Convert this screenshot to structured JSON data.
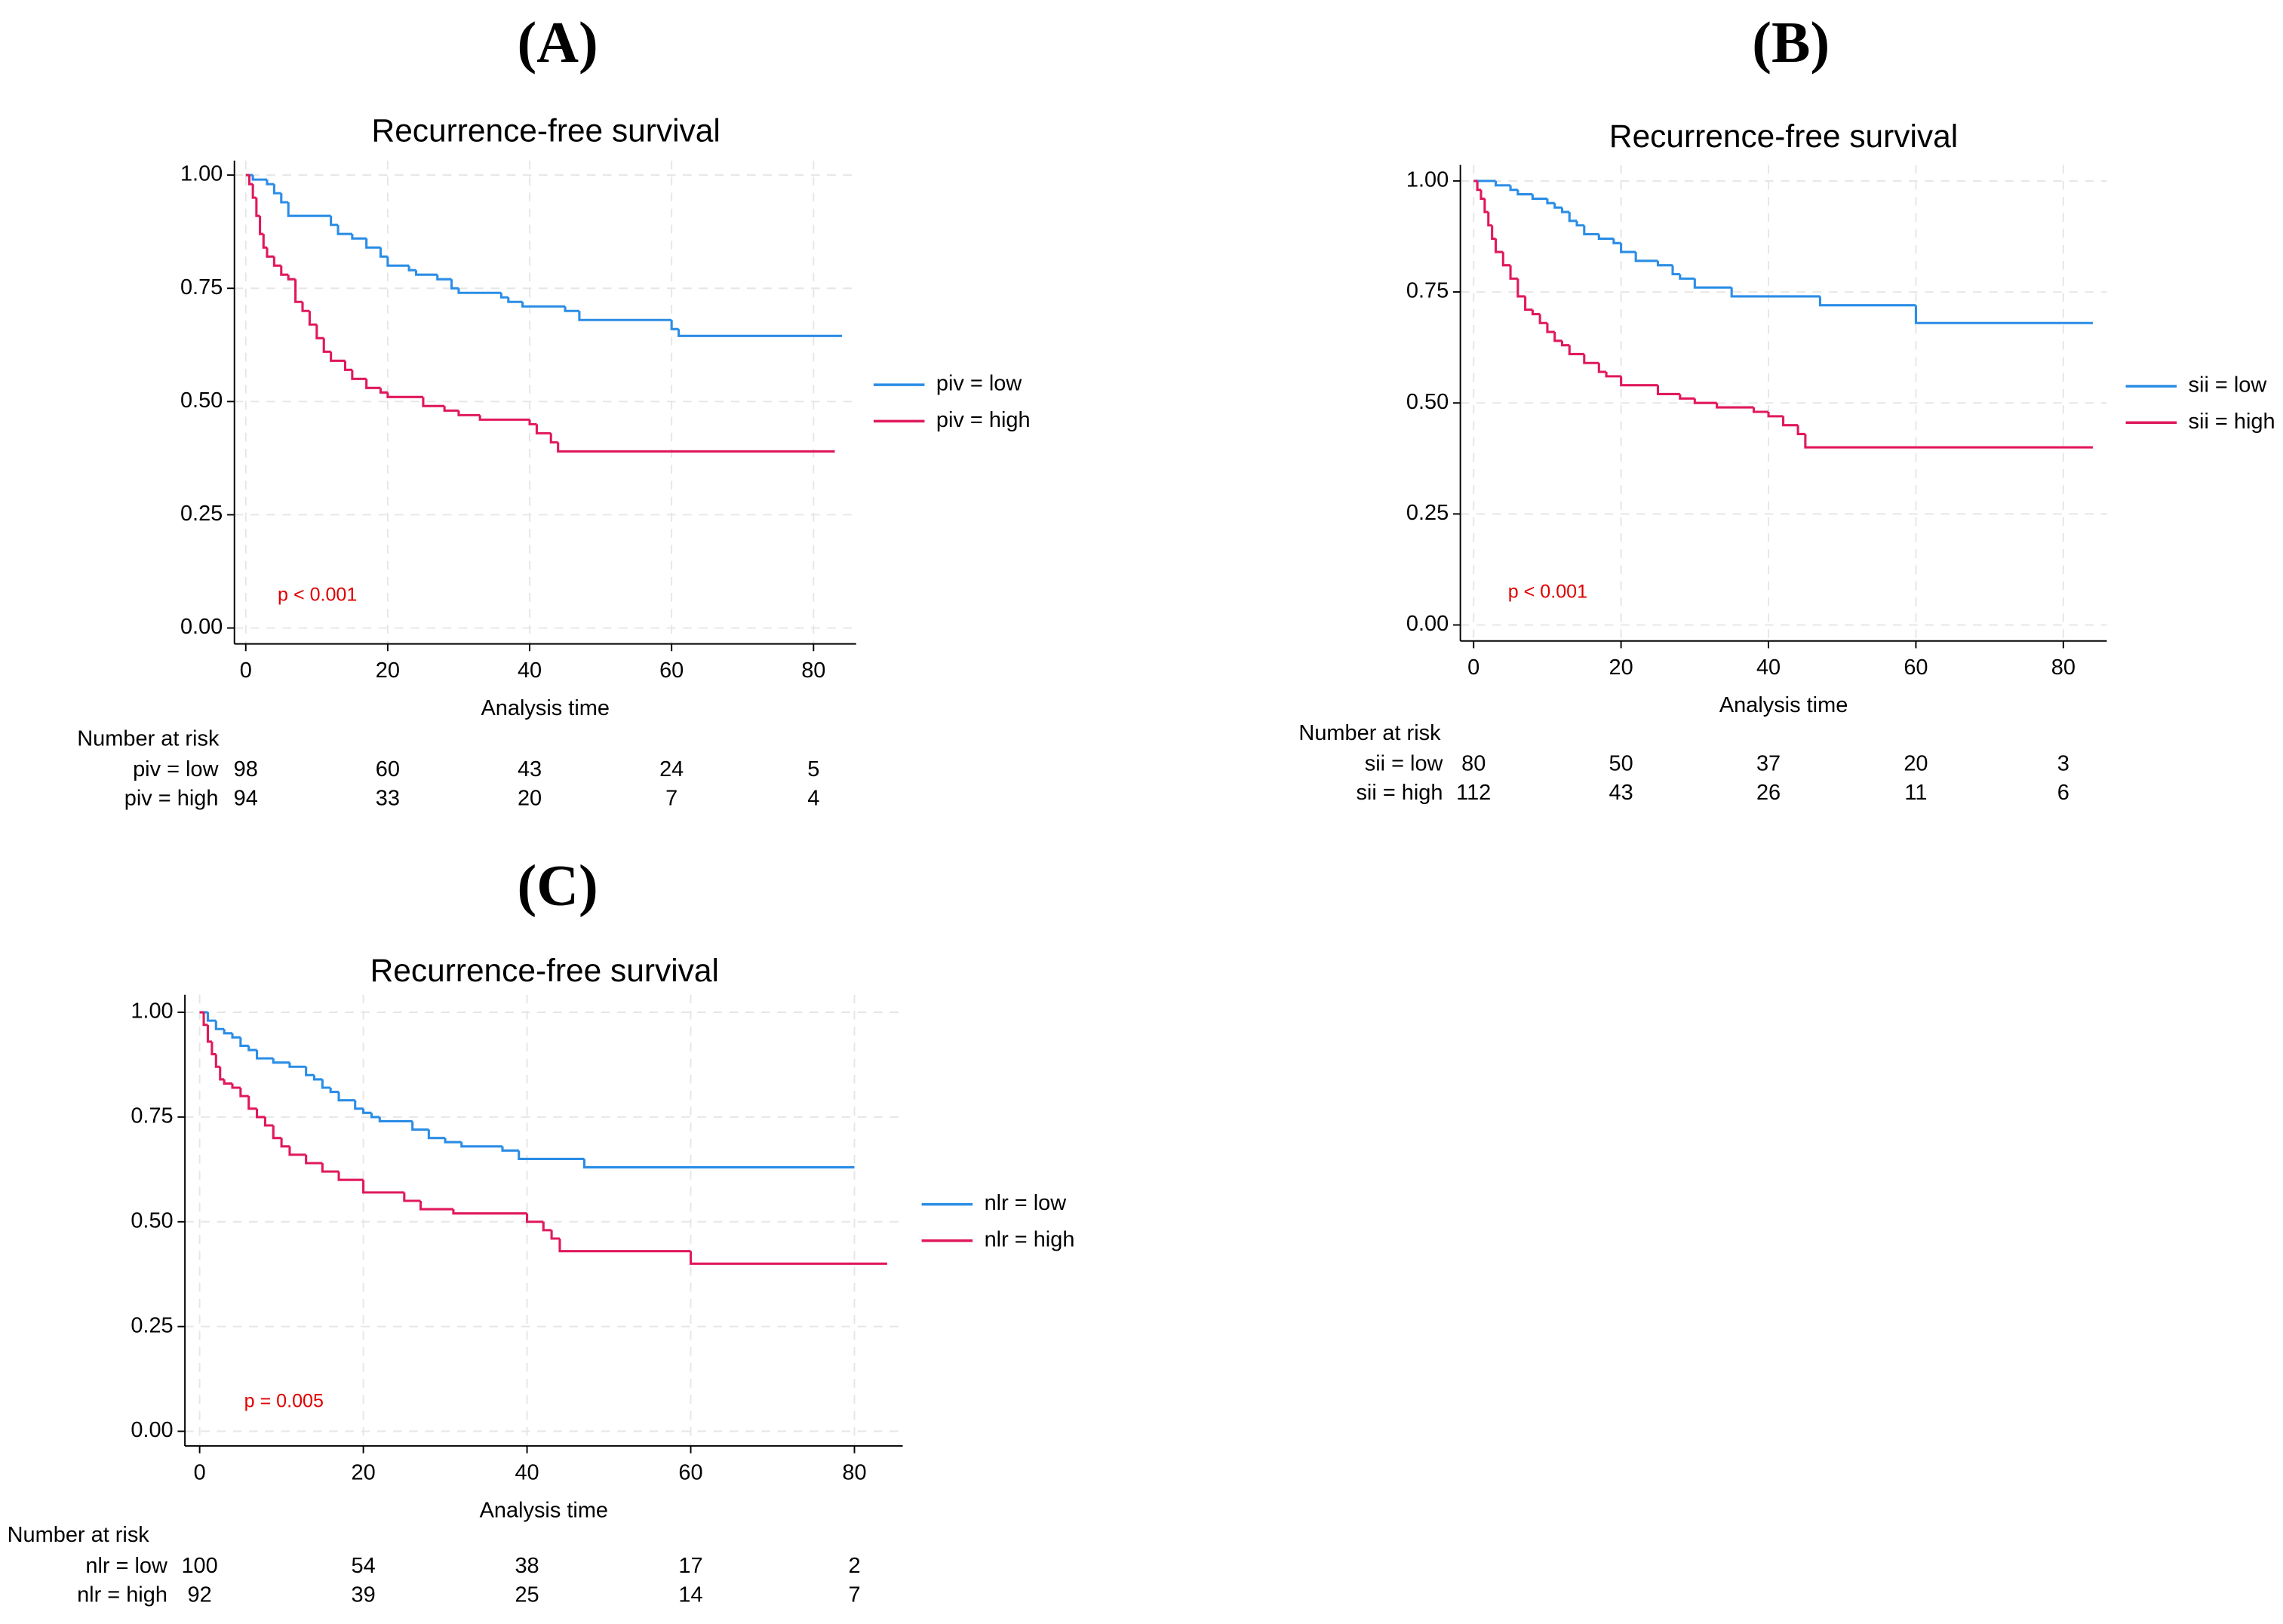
{
  "chart_data": [
    {
      "type": "line",
      "panel_label": "(A)",
      "title": "Recurrence-free survival",
      "x_label": "Analysis time",
      "xlim": [
        -1.6,
        86
      ],
      "xticks": [
        0,
        20,
        40,
        60,
        80
      ],
      "ylim": [
        -0.035,
        1.032
      ],
      "yticks": [
        {
          "value": 1,
          "label": "1.00"
        },
        0.75,
        {
          "value": 0.5,
          "label": "0.50"
        },
        0.25,
        {
          "value": 0,
          "label": "0.00"
        }
      ],
      "grid": true,
      "legend": "right",
      "annotation": "p < 0.001",
      "series": [
        {
          "name": "piv = low",
          "color": "#2b8de6",
          "x": [
            0,
            1,
            3,
            4,
            5,
            6,
            12,
            13,
            15,
            17,
            19,
            20,
            23,
            24,
            27,
            29,
            30,
            36,
            37,
            39,
            45,
            47,
            60,
            61,
            84
          ],
          "values": [
            1,
            0.99,
            0.98,
            0.96,
            0.94,
            0.91,
            0.89,
            0.87,
            0.86,
            0.84,
            0.82,
            0.8,
            0.79,
            0.78,
            0.77,
            0.75,
            0.74,
            0.73,
            0.72,
            0.71,
            0.7,
            0.68,
            0.66,
            0.645,
            0.645
          ]
        },
        {
          "name": "piv = high",
          "color": "#e0195a",
          "x": [
            0,
            0.5,
            1,
            1.5,
            2,
            2.5,
            3,
            4,
            5,
            6,
            7,
            8,
            9,
            10,
            11,
            12,
            14,
            15,
            17,
            19,
            20,
            25,
            28,
            30,
            33,
            40,
            41,
            43,
            44,
            83
          ],
          "values": [
            1,
            0.98,
            0.95,
            0.91,
            0.87,
            0.84,
            0.82,
            0.8,
            0.78,
            0.77,
            0.72,
            0.7,
            0.67,
            0.64,
            0.61,
            0.59,
            0.57,
            0.55,
            0.53,
            0.52,
            0.51,
            0.49,
            0.48,
            0.47,
            0.46,
            0.45,
            0.43,
            0.41,
            0.39,
            0.39
          ]
        }
      ],
      "risk_table": {
        "title": "Number at risk",
        "values": [
          [
            98,
            60,
            43,
            24,
            5
          ],
          [
            94,
            33,
            20,
            7,
            4
          ]
        ]
      }
    },
    {
      "type": "line",
      "panel_label": "(B)",
      "title": "Recurrence-free survival",
      "x_label": "Analysis time",
      "xlim": [
        -1.8,
        85.9
      ],
      "xticks": [
        0,
        20,
        40,
        60,
        80
      ],
      "ylim": [
        -0.036,
        1.036
      ],
      "yticks": [
        {
          "value": 1,
          "label": "1.00"
        },
        0.75,
        {
          "value": 0.5,
          "label": "0.50"
        },
        0.25,
        {
          "value": 0,
          "label": "0.00"
        }
      ],
      "grid": true,
      "legend": "right",
      "annotation": "p < 0.001",
      "series": [
        {
          "name": "sii = low",
          "color": "#2b8de6",
          "x": [
            0,
            3,
            5,
            6,
            8,
            10,
            11,
            12,
            13,
            14,
            15,
            17,
            19,
            20,
            22,
            25,
            27,
            28,
            30,
            35,
            47,
            60,
            84
          ],
          "values": [
            1,
            0.99,
            0.98,
            0.97,
            0.96,
            0.95,
            0.94,
            0.93,
            0.91,
            0.9,
            0.88,
            0.87,
            0.86,
            0.84,
            0.82,
            0.81,
            0.79,
            0.78,
            0.76,
            0.74,
            0.72,
            0.68,
            0.68
          ]
        },
        {
          "name": "sii = high",
          "color": "#e0195a",
          "x": [
            0,
            0.5,
            1,
            1.5,
            2,
            2.5,
            3,
            4,
            5,
            6,
            7,
            8,
            9,
            10,
            11,
            12,
            13,
            15,
            17,
            18,
            20,
            25,
            28,
            30,
            33,
            38,
            40,
            42,
            44,
            45,
            84
          ],
          "values": [
            1,
            0.98,
            0.96,
            0.93,
            0.9,
            0.87,
            0.84,
            0.81,
            0.78,
            0.74,
            0.71,
            0.7,
            0.68,
            0.66,
            0.64,
            0.63,
            0.61,
            0.59,
            0.57,
            0.56,
            0.54,
            0.52,
            0.51,
            0.5,
            0.49,
            0.48,
            0.47,
            0.45,
            0.43,
            0.4,
            0.4
          ]
        }
      ],
      "risk_table": {
        "title": "Number at risk",
        "values": [
          [
            80,
            50,
            37,
            20,
            3
          ],
          [
            112,
            43,
            26,
            11,
            6
          ]
        ]
      }
    },
    {
      "type": "line",
      "panel_label": "(C)",
      "title": "Recurrence-free survival",
      "x_label": "Analysis time",
      "xlim": [
        -1.8,
        85.9
      ],
      "xticks": [
        0,
        20,
        40,
        60,
        80
      ],
      "ylim": [
        -0.035,
        1.042
      ],
      "yticks": [
        {
          "value": 1,
          "label": "1.00"
        },
        0.75,
        {
          "value": 0.5,
          "label": "0.50"
        },
        0.25,
        {
          "value": 0,
          "label": "0.00"
        }
      ],
      "grid": true,
      "legend": "right",
      "annotation": "p = 0.005",
      "series": [
        {
          "name": "nlr = low",
          "color": "#2b8de6",
          "x": [
            0,
            1,
            2,
            3,
            4,
            5,
            6,
            7,
            9,
            11,
            13,
            14,
            15,
            16,
            17,
            19,
            20,
            21,
            22,
            26,
            28,
            30,
            32,
            37,
            39,
            47,
            80
          ],
          "values": [
            1,
            0.98,
            0.96,
            0.95,
            0.94,
            0.92,
            0.91,
            0.89,
            0.88,
            0.87,
            0.85,
            0.84,
            0.82,
            0.81,
            0.79,
            0.77,
            0.76,
            0.75,
            0.74,
            0.72,
            0.7,
            0.69,
            0.68,
            0.67,
            0.65,
            0.63,
            0.63
          ]
        },
        {
          "name": "nlr = high",
          "color": "#e0195a",
          "x": [
            0,
            0.5,
            1,
            1.5,
            2,
            2.5,
            3,
            4,
            5,
            6,
            7,
            8,
            9,
            10,
            11,
            13,
            15,
            17,
            20,
            25,
            27,
            31,
            40,
            42,
            43,
            44,
            60,
            84
          ],
          "values": [
            1,
            0.97,
            0.93,
            0.9,
            0.87,
            0.84,
            0.83,
            0.82,
            0.8,
            0.77,
            0.75,
            0.73,
            0.7,
            0.68,
            0.66,
            0.64,
            0.62,
            0.6,
            0.57,
            0.55,
            0.53,
            0.52,
            0.5,
            0.48,
            0.46,
            0.43,
            0.4,
            0.4
          ]
        }
      ],
      "risk_table": {
        "title": "Number at risk",
        "values": [
          [
            100,
            54,
            38,
            17,
            2
          ],
          [
            92,
            39,
            25,
            14,
            7
          ]
        ]
      }
    }
  ]
}
